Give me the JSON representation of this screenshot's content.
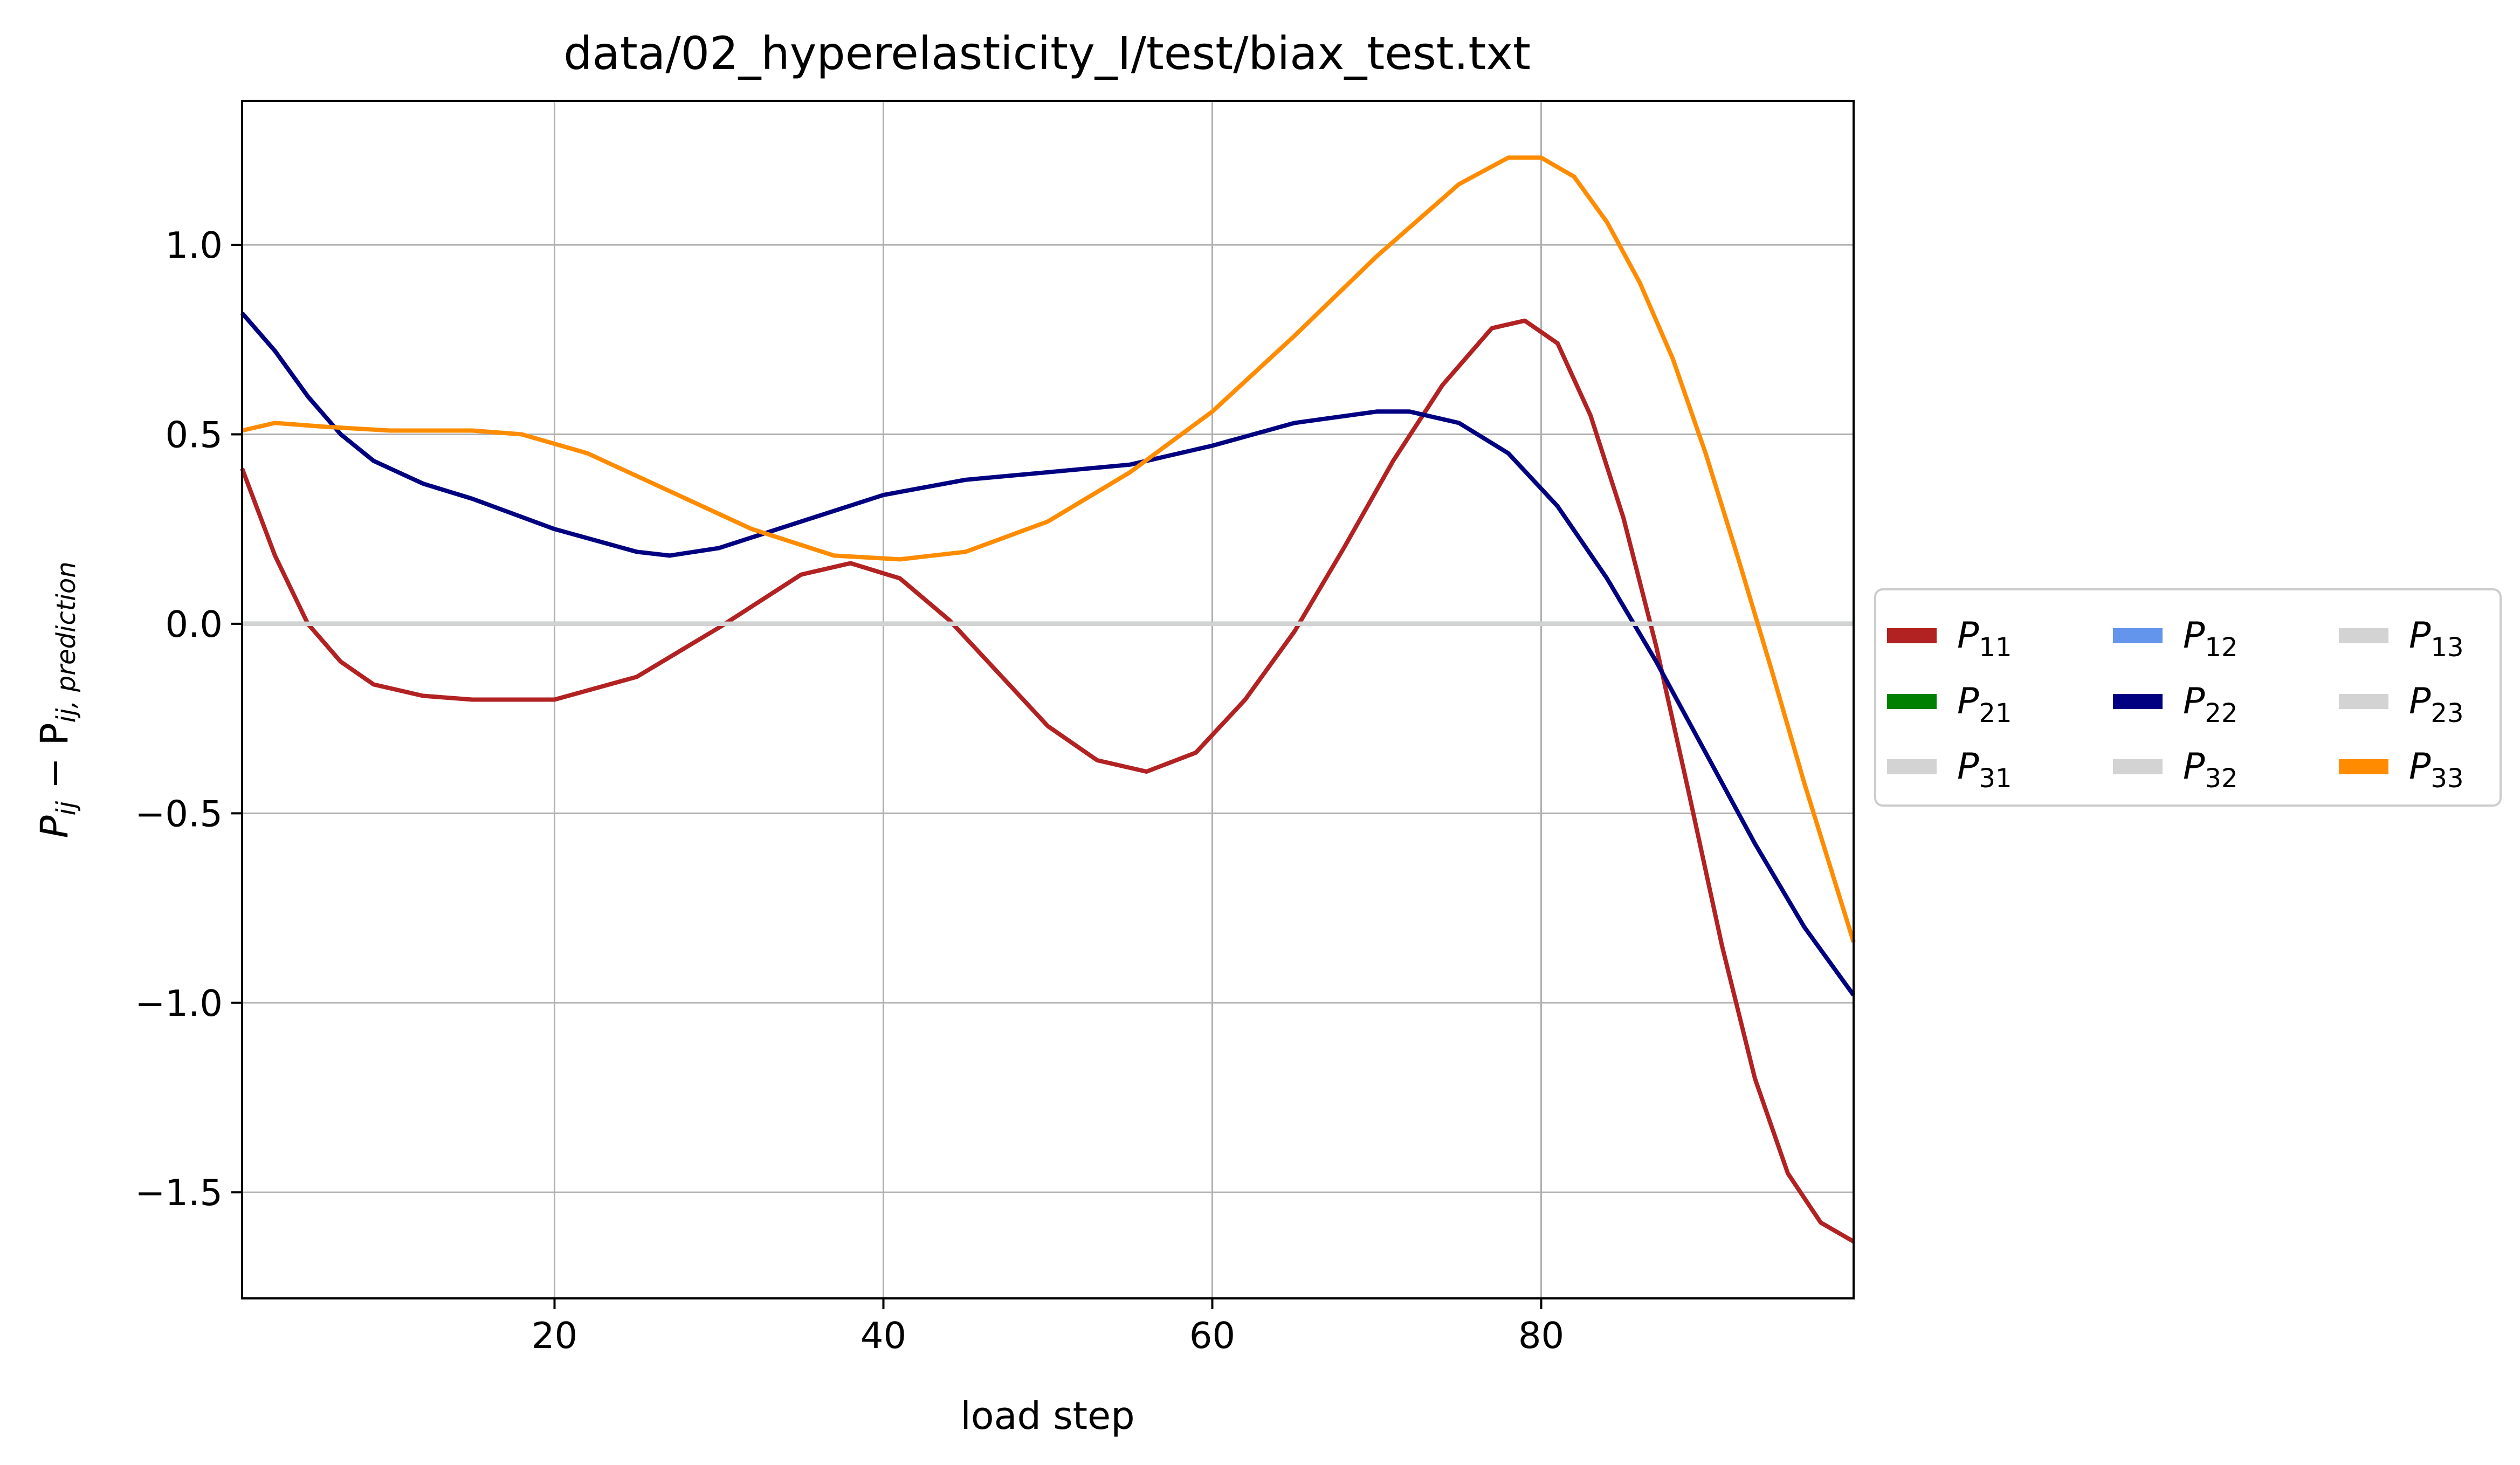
{
  "chart_data": {
    "type": "line",
    "title": "data/02_hyperelasticity_I/test/biax_test.txt",
    "xlabel": "load step",
    "ylabel": {
      "main": "P",
      "sub1": "ij",
      "mid": " − P",
      "sub2": "ij, prediction"
    },
    "xlim": [
      1,
      99
    ],
    "ylim": [
      -1.78,
      1.38
    ],
    "x_ticks": [
      20,
      40,
      60,
      80
    ],
    "y_ticks": [
      -1.5,
      -1.0,
      -0.5,
      0.0,
      0.5,
      1.0
    ],
    "x_tick_labels": [
      "20",
      "40",
      "60",
      "80"
    ],
    "y_tick_labels": [
      "−1.5",
      "−1.0",
      "−0.5",
      "0.0",
      "0.5",
      "1.0"
    ],
    "grid": true,
    "legend_position": "outside-right",
    "legend_columns": 3,
    "series": [
      {
        "name": "P",
        "sub": "11",
        "color": "#b22222",
        "x": [
          1,
          3,
          5,
          7,
          9,
          12,
          15,
          20,
          25,
          30,
          35,
          38,
          41,
          44,
          47,
          50,
          53,
          56,
          59,
          62,
          65,
          68,
          71,
          74,
          77,
          79,
          81,
          83,
          85,
          87,
          89,
          91,
          93,
          95,
          97,
          99
        ],
        "y": [
          0.41,
          0.18,
          0.0,
          -0.1,
          -0.16,
          -0.19,
          -0.2,
          -0.2,
          -0.14,
          -0.01,
          0.13,
          0.16,
          0.12,
          0.01,
          -0.13,
          -0.27,
          -0.36,
          -0.39,
          -0.34,
          -0.2,
          -0.02,
          0.2,
          0.43,
          0.63,
          0.78,
          0.8,
          0.74,
          0.55,
          0.28,
          -0.06,
          -0.45,
          -0.85,
          -1.2,
          -1.45,
          -1.58,
          -1.63
        ]
      },
      {
        "name": "P",
        "sub": "12",
        "color": "#6495ed",
        "x": [
          1,
          99
        ],
        "y": [
          0.0,
          0.0
        ]
      },
      {
        "name": "P",
        "sub": "13",
        "color": "#d3d3d3",
        "x": [
          1,
          99
        ],
        "y": [
          0.0,
          0.0
        ]
      },
      {
        "name": "P",
        "sub": "21",
        "color": "#008000",
        "x": [
          1,
          99
        ],
        "y": [
          0.0,
          0.0
        ]
      },
      {
        "name": "P",
        "sub": "22",
        "color": "#000080",
        "x": [
          1,
          3,
          5,
          7,
          9,
          12,
          15,
          20,
          25,
          27,
          30,
          35,
          40,
          45,
          50,
          55,
          60,
          65,
          70,
          72,
          75,
          78,
          81,
          84,
          87,
          90,
          93,
          96,
          99
        ],
        "y": [
          0.82,
          0.72,
          0.6,
          0.5,
          0.43,
          0.37,
          0.33,
          0.25,
          0.19,
          0.18,
          0.2,
          0.27,
          0.34,
          0.38,
          0.4,
          0.42,
          0.47,
          0.53,
          0.56,
          0.56,
          0.53,
          0.45,
          0.31,
          0.12,
          -0.1,
          -0.34,
          -0.58,
          -0.8,
          -0.98
        ]
      },
      {
        "name": "P",
        "sub": "23",
        "color": "#d3d3d3",
        "x": [
          1,
          99
        ],
        "y": [
          0.0,
          0.0
        ]
      },
      {
        "name": "P",
        "sub": "31",
        "color": "#d3d3d3",
        "x": [
          1,
          99
        ],
        "y": [
          0.0,
          0.0
        ]
      },
      {
        "name": "P",
        "sub": "32",
        "color": "#d3d3d3",
        "x": [
          1,
          99
        ],
        "y": [
          0.0,
          0.0
        ]
      },
      {
        "name": "P",
        "sub": "33",
        "color": "#ff8c00",
        "x": [
          1,
          3,
          6,
          10,
          15,
          18,
          22,
          27,
          32,
          37,
          41,
          45,
          50,
          55,
          60,
          65,
          70,
          75,
          78,
          80,
          82,
          84,
          86,
          88,
          90,
          92,
          94,
          96,
          99
        ],
        "y": [
          0.51,
          0.53,
          0.52,
          0.51,
          0.51,
          0.5,
          0.45,
          0.35,
          0.25,
          0.18,
          0.17,
          0.19,
          0.27,
          0.4,
          0.56,
          0.76,
          0.97,
          1.16,
          1.23,
          1.23,
          1.18,
          1.06,
          0.9,
          0.7,
          0.45,
          0.17,
          -0.12,
          -0.42,
          -0.84
        ]
      }
    ],
    "legend_order": [
      0,
      3,
      6,
      1,
      4,
      7,
      2,
      5,
      8
    ]
  }
}
